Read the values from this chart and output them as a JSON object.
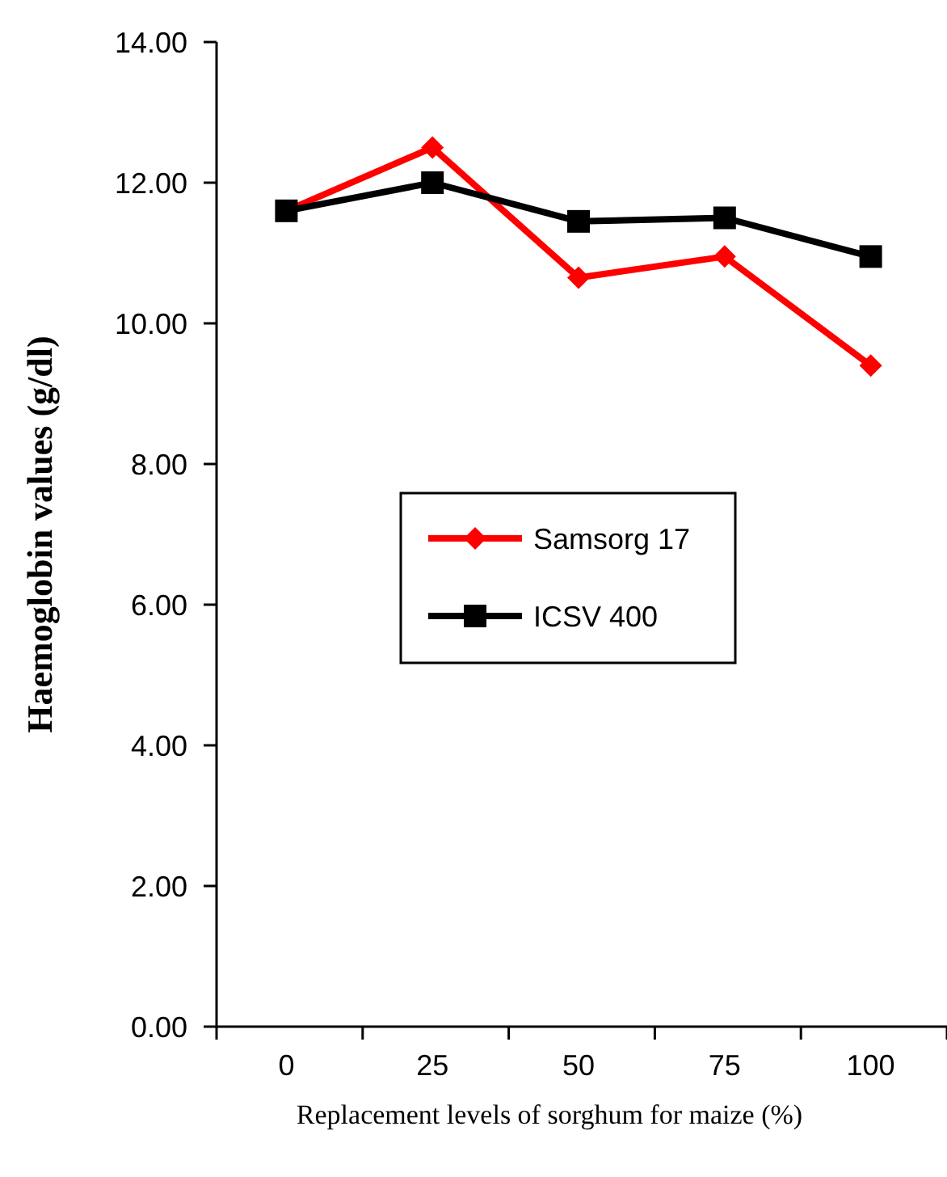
{
  "chart_data": {
    "type": "line",
    "xlabel": "Replacement levels of sorghum for maize (%)",
    "ylabel": "Haemoglobin values (g/dl)",
    "categories": [
      "0",
      "25",
      "50",
      "75",
      "100"
    ],
    "series": [
      {
        "name": "Samsorg 17",
        "color": "#ff0000",
        "marker": "diamond",
        "values": [
          11.6,
          12.5,
          10.65,
          10.95,
          9.4
        ]
      },
      {
        "name": "ICSV 400",
        "color": "#000000",
        "marker": "square",
        "values": [
          11.6,
          12.0,
          11.45,
          11.5,
          10.95
        ]
      }
    ],
    "ylim": [
      0,
      14
    ],
    "yticks": [
      {
        "value": 0,
        "label": "0.00"
      },
      {
        "value": 2,
        "label": "2.00"
      },
      {
        "value": 4,
        "label": "4.00"
      },
      {
        "value": 6,
        "label": "6.00"
      },
      {
        "value": 8,
        "label": "8.00"
      },
      {
        "value": 10,
        "label": "10.00"
      },
      {
        "value": 12,
        "label": "12.00"
      },
      {
        "value": 14,
        "label": "14.00"
      }
    ],
    "grid": false,
    "legend": "center",
    "line_style": "solid"
  }
}
